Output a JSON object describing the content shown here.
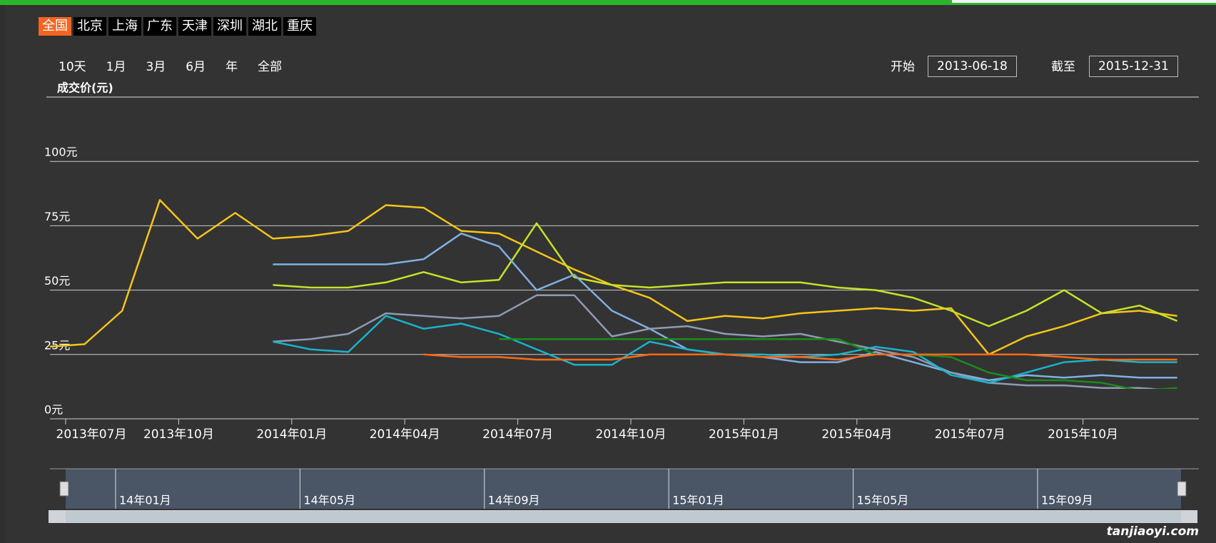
{
  "tabs": [
    "全国",
    "北京",
    "上海",
    "广东",
    "天津",
    "深圳",
    "湖北",
    "重庆"
  ],
  "range_buttons": [
    "10天",
    "1月",
    "3月",
    "6月",
    "年",
    "全部"
  ],
  "start_label": "开始",
  "start_date": "2013-06-18",
  "end_label": "截至",
  "end_date": "2015-12-31",
  "chart_data": {
    "type": "line",
    "y_axis_label": "成交价(元)",
    "x": [
      "2013-06",
      "2013-07",
      "2013-08",
      "2013-09",
      "2013-10",
      "2013-11",
      "2013-12",
      "2014-01",
      "2014-02",
      "2014-03",
      "2014-04",
      "2014-05",
      "2014-06",
      "2014-07",
      "2014-08",
      "2014-09",
      "2014-10",
      "2014-11",
      "2014-12",
      "2015-01",
      "2015-02",
      "2015-03",
      "2015-04",
      "2015-05",
      "2015-06",
      "2015-07",
      "2015-08",
      "2015-09",
      "2015-10",
      "2015-11",
      "2015-12"
    ],
    "series": [
      {
        "color": "#f5c518",
        "values": [
          28,
          29,
          42,
          85,
          70,
          80,
          70,
          71,
          73,
          83,
          82,
          73,
          72,
          65,
          58,
          52,
          47,
          38,
          40,
          39,
          41,
          42,
          43,
          42,
          43,
          25,
          32,
          36,
          41,
          42,
          40
        ]
      },
      {
        "color": "#c6e22a",
        "values": [
          null,
          null,
          null,
          null,
          null,
          null,
          52,
          51,
          51,
          53,
          57,
          53,
          54,
          76,
          55,
          52,
          51,
          52,
          53,
          53,
          53,
          51,
          50,
          47,
          42,
          36,
          42,
          50,
          41,
          44,
          38
        ]
      },
      {
        "color": "#7fb0e4",
        "values": [
          null,
          null,
          null,
          null,
          null,
          null,
          60,
          60,
          60,
          60,
          62,
          72,
          67,
          50,
          56,
          42,
          35,
          27,
          25,
          24,
          22,
          22,
          26,
          22,
          18,
          15,
          17,
          16,
          17,
          16,
          16
        ]
      },
      {
        "color": "#8f9bb3",
        "values": [
          null,
          null,
          null,
          null,
          null,
          null,
          30,
          31,
          33,
          41,
          40,
          39,
          40,
          48,
          48,
          32,
          35,
          36,
          33,
          32,
          33,
          30,
          27,
          24,
          18,
          14,
          13,
          13,
          12,
          12,
          11
        ]
      },
      {
        "color": "#18b4cc",
        "values": [
          null,
          null,
          null,
          null,
          null,
          null,
          30,
          27,
          26,
          40,
          35,
          37,
          33,
          27,
          21,
          21,
          30,
          27,
          25,
          25,
          24,
          25,
          28,
          26,
          17,
          14,
          18,
          22,
          23,
          22,
          22
        ]
      },
      {
        "color": "#1a8c1a",
        "values": [
          null,
          null,
          null,
          null,
          null,
          null,
          null,
          null,
          null,
          null,
          null,
          null,
          31,
          31,
          31,
          31,
          31,
          31,
          31,
          31,
          31,
          31,
          25,
          25,
          24,
          18,
          15,
          15,
          14,
          11,
          12
        ]
      },
      {
        "color": "#ff6a14",
        "values": [
          null,
          null,
          null,
          null,
          null,
          null,
          null,
          null,
          null,
          null,
          25,
          24,
          24,
          23,
          23,
          23,
          25,
          25,
          25,
          24,
          24,
          23,
          25,
          25,
          25,
          25,
          25,
          24,
          23,
          23,
          23
        ]
      }
    ],
    "ylim": [
      0,
      125
    ],
    "yticks": [
      {
        "value": 0,
        "label": "0元"
      },
      {
        "value": 25,
        "label": "25元"
      },
      {
        "value": 50,
        "label": "50元"
      },
      {
        "value": 75,
        "label": "75元"
      },
      {
        "value": 100,
        "label": "100元"
      }
    ],
    "xticks": [
      {
        "value": "2013-07",
        "label": "2013年07月"
      },
      {
        "value": "2013-10",
        "label": "2013年10月"
      },
      {
        "value": "2014-01",
        "label": "2014年01月"
      },
      {
        "value": "2014-04",
        "label": "2014年04月"
      },
      {
        "value": "2014-07",
        "label": "2014年07月"
      },
      {
        "value": "2014-10",
        "label": "2014年10月"
      },
      {
        "value": "2015-01",
        "label": "2015年01月"
      },
      {
        "value": "2015-04",
        "label": "2015年04月"
      },
      {
        "value": "2015-07",
        "label": "2015年07月"
      },
      {
        "value": "2015-10",
        "label": "2015年10月"
      }
    ],
    "grid": true
  },
  "navigator": {
    "labels": [
      "14年01月",
      "14年05月",
      "14年09月",
      "15年01月",
      "15年05月",
      "15年09月"
    ]
  },
  "watermark": "tanjiaoyi.com"
}
